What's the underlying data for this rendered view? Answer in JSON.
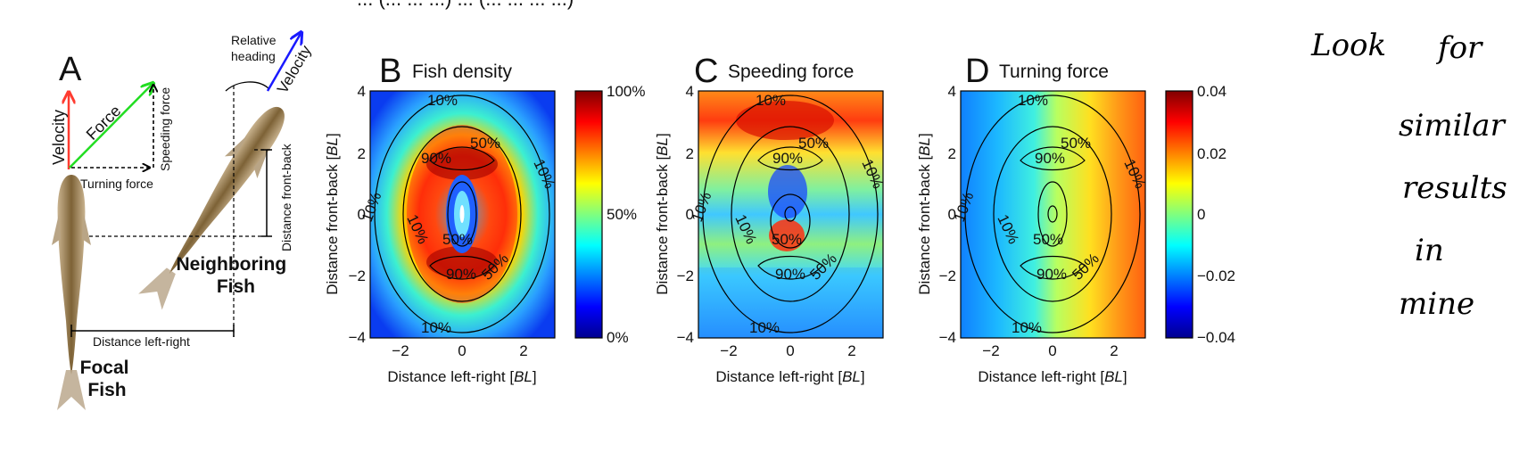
{
  "top_fragment": "... (... ... ...) ... (... ... ... ...)",
  "panel_a": {
    "letter": "A",
    "velocity_focal": "Velocity",
    "force": "Force",
    "speeding_force": "Speeding force",
    "turning_force": "Turning force",
    "relative_heading": "Relative heading",
    "relative_heading_l1": "Relative",
    "relative_heading_l2": "heading",
    "velocity_neighbor": "Velocity",
    "distance_front_back": "Distance front-back",
    "distance_left_right": "Distance left-right",
    "neighbor_label_l1": "Neighboring",
    "neighbor_label_l2": "Fish",
    "focal_label_l1": "Focal",
    "focal_label_l2": "Fish",
    "colors": {
      "velocity_focal": "#ff3b30",
      "force": "#22dd22",
      "neighbor_blue": "#1a1aff",
      "focal_red": "#ff3b30"
    }
  },
  "chart_data": [
    {
      "type": "heatmap",
      "letter": "B",
      "title": "Fish density",
      "xlabel": "Distance left-right [BL]",
      "ylabel": "Distance front-back [BL]",
      "xlim": [
        -3,
        3
      ],
      "ylim": [
        -4,
        4
      ],
      "xticks": [
        "−2",
        "0",
        "2"
      ],
      "yticks": [
        "4",
        "2",
        "0",
        "−2",
        "−4"
      ],
      "colorbar": {
        "ticks": [
          "100%",
          "50%",
          "0%"
        ],
        "range": [
          0,
          100
        ],
        "colormap": "jet"
      },
      "contour_labels": [
        "10%",
        "50%",
        "90%",
        "10%",
        "50%",
        "90%",
        "50%",
        "10%",
        "10%",
        "10%"
      ]
    },
    {
      "type": "heatmap",
      "letter": "C",
      "title": "Speeding force",
      "xlabel": "Distance left-right [BL]",
      "ylabel": "Distance front-back [BL]",
      "xlim": [
        -3,
        3
      ],
      "ylim": [
        -4,
        4
      ],
      "xticks": [
        "−2",
        "0",
        "2"
      ],
      "yticks": [
        "4",
        "2",
        "0",
        "−2",
        "−4"
      ],
      "colormap": "jet",
      "contour_labels": [
        "10%",
        "50%",
        "90%",
        "10%",
        "50%",
        "90%",
        "50%",
        "10%",
        "10%",
        "10%"
      ]
    },
    {
      "type": "heatmap",
      "letter": "D",
      "title": "Turning force",
      "xlabel": "Distance left-right [BL]",
      "ylabel": "Distance front-back [BL]",
      "xlim": [
        -3,
        3
      ],
      "ylim": [
        -4,
        4
      ],
      "xticks": [
        "−2",
        "0",
        "2"
      ],
      "yticks": [
        "4",
        "2",
        "0",
        "−2",
        "−4"
      ],
      "colorbar": {
        "ticks": [
          "0.04",
          "0.02",
          "0",
          "−0.02",
          "−0.04"
        ],
        "range": [
          -0.04,
          0.04
        ],
        "colormap": "jet"
      },
      "contour_labels": [
        "10%",
        "50%",
        "90%",
        "10%",
        "50%",
        "90%",
        "50%",
        "10%",
        "10%",
        "10%"
      ]
    }
  ],
  "handwritten_note": [
    "Look",
    "for",
    "similar",
    "results",
    "in",
    "mine"
  ]
}
